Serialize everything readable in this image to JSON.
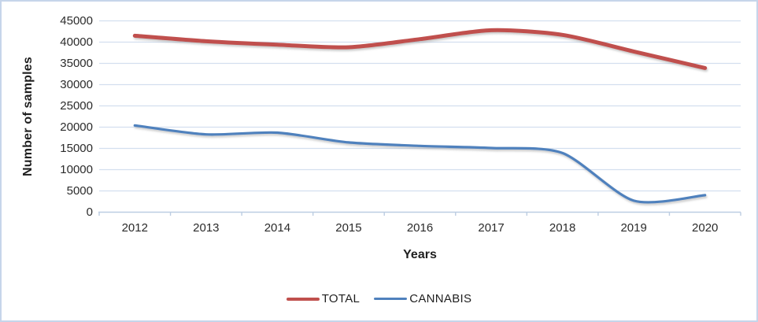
{
  "chart_data": {
    "type": "line",
    "title": "",
    "xlabel": "Years",
    "ylabel": "Number of samples",
    "categories": [
      "2012",
      "2013",
      "2014",
      "2015",
      "2016",
      "2017",
      "2018",
      "2019",
      "2020"
    ],
    "y_ticks": [
      0,
      5000,
      10000,
      15000,
      20000,
      25000,
      30000,
      35000,
      40000,
      45000
    ],
    "ylim": [
      0,
      45000
    ],
    "grid": true,
    "smoothed_lines": true,
    "legend_position": "bottom",
    "series": [
      {
        "name": "TOTAL",
        "color": "#c0504d",
        "line_width": 5,
        "values": [
          41500,
          40200,
          39400,
          38800,
          40700,
          42800,
          41700,
          37800,
          33900
        ]
      },
      {
        "name": "CANNABIS",
        "color": "#4f81bd",
        "line_width": 3.2,
        "values": [
          20400,
          18300,
          18700,
          16400,
          15600,
          15100,
          13900,
          2700,
          4000
        ]
      }
    ]
  },
  "colors": {
    "gridline": "#d3dfef",
    "axis_line": "#bccde2",
    "border": "#c6d5ea",
    "text": "#2b2b2b",
    "background": "#ffffff"
  }
}
